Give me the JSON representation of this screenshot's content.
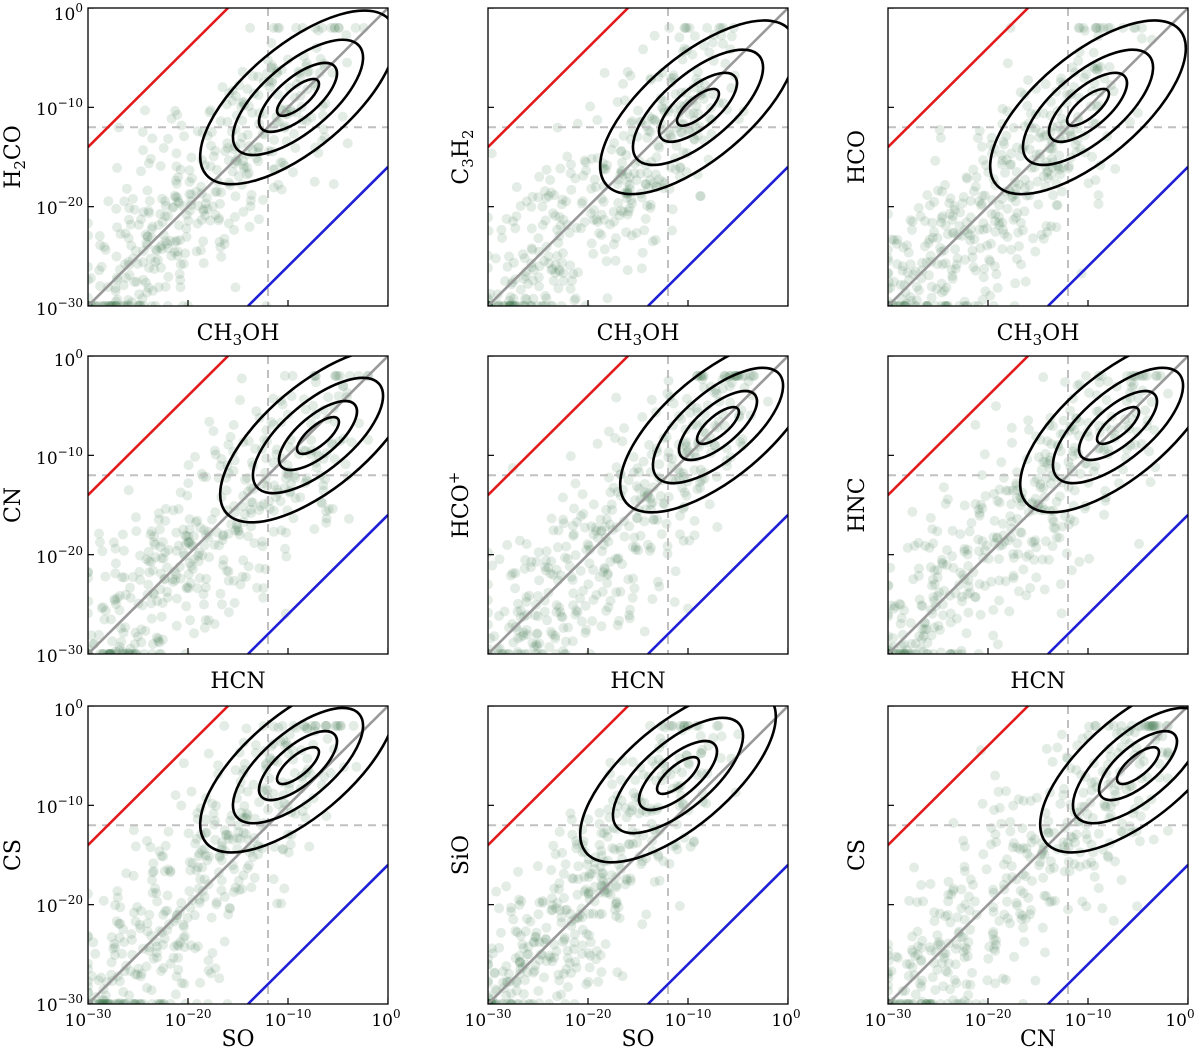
{
  "figure": {
    "layout": "3x3 grid of scatter plots with density contours",
    "colors": {
      "scatter": "#2e6b3a",
      "contour": "#000000",
      "upper_line": "#e31a1c",
      "unity_line": "#999999",
      "lower_line": "#1f1fd6",
      "threshold": "#c0c0c0"
    }
  },
  "chart_data": [
    {
      "type": "scatter",
      "xlabel": "CH3OH",
      "ylabel": "H2CO",
      "xscale": "log",
      "yscale": "log",
      "xlim": [
        1e-30,
        1
      ],
      "ylim": [
        1e-30,
        1
      ],
      "xticks": [
        "10^-30",
        "10^-20",
        "10^-10",
        "10^0"
      ],
      "yticks": [
        "10^-30",
        "10^-20",
        "10^-10",
        "10^0"
      ],
      "lines": {
        "unity": "y = x",
        "upper": "y = 1e16·x",
        "lower": "y = 1e-16·x",
        "threshold_x": 1e-12,
        "threshold_y": 1e-12
      },
      "density_peak": [
        1e-09,
        1e-09
      ]
    },
    {
      "type": "scatter",
      "xlabel": "CH3OH",
      "ylabel": "C3H2",
      "xscale": "log",
      "yscale": "log",
      "xlim": [
        1e-30,
        1
      ],
      "ylim": [
        1e-30,
        1
      ],
      "lines": {
        "unity": "y = x",
        "upper": "y = 1e16·x",
        "lower": "y = 1e-16·x",
        "threshold_x": 1e-12,
        "threshold_y": 1e-12
      },
      "density_peak": [
        1e-09,
        1e-10
      ]
    },
    {
      "type": "scatter",
      "xlabel": "CH3OH",
      "ylabel": "HCO",
      "xscale": "log",
      "yscale": "log",
      "xlim": [
        1e-30,
        1
      ],
      "ylim": [
        1e-30,
        1
      ],
      "lines": {
        "unity": "y = x",
        "upper": "y = 1e16·x",
        "lower": "y = 1e-16·x",
        "threshold_x": 1e-12,
        "threshold_y": 1e-12
      },
      "density_peak": [
        1e-10,
        1e-10
      ]
    },
    {
      "type": "scatter",
      "xlabel": "HCN",
      "ylabel": "CN",
      "xscale": "log",
      "yscale": "log",
      "xlim": [
        1e-30,
        1
      ],
      "ylim": [
        1e-30,
        1
      ],
      "lines": {
        "unity": "y = x",
        "upper": "y = 1e16·x",
        "lower": "y = 1e-16·x",
        "threshold_x": 1e-12,
        "threshold_y": 1e-12
      },
      "density_peak": [
        1e-07,
        1e-08
      ]
    },
    {
      "type": "scatter",
      "xlabel": "HCN",
      "ylabel": "HCO+",
      "xscale": "log",
      "yscale": "log",
      "xlim": [
        1e-30,
        1
      ],
      "ylim": [
        1e-30,
        1
      ],
      "lines": {
        "unity": "y = x",
        "upper": "y = 1e16·x",
        "lower": "y = 1e-16·x",
        "threshold_x": 1e-12,
        "threshold_y": 1e-12
      },
      "density_peak": [
        1e-07,
        1e-07
      ]
    },
    {
      "type": "scatter",
      "xlabel": "HCN",
      "ylabel": "HNC",
      "xscale": "log",
      "yscale": "log",
      "xlim": [
        1e-30,
        1
      ],
      "ylim": [
        1e-30,
        1
      ],
      "lines": {
        "unity": "y = x",
        "upper": "y = 1e16·x",
        "lower": "y = 1e-16·x",
        "threshold_x": 1e-12,
        "threshold_y": 1e-12
      },
      "density_peak": [
        1e-07,
        1e-07
      ]
    },
    {
      "type": "scatter",
      "xlabel": "SO",
      "ylabel": "CS",
      "xscale": "log",
      "yscale": "log",
      "xlim": [
        1e-30,
        1
      ],
      "ylim": [
        1e-30,
        1
      ],
      "xticks": [
        "10^-30",
        "10^-20",
        "10^-10",
        "10^0"
      ],
      "lines": {
        "unity": "y = x",
        "upper": "y = 1e16·x",
        "lower": "y = 1e-16·x",
        "threshold_x": 1e-12,
        "threshold_y": 1e-12
      },
      "density_peak": [
        1e-09,
        1e-06
      ]
    },
    {
      "type": "scatter",
      "xlabel": "SO",
      "ylabel": "SiO",
      "xscale": "log",
      "yscale": "log",
      "xlim": [
        1e-30,
        1
      ],
      "ylim": [
        1e-30,
        1
      ],
      "xticks": [
        "10^-30",
        "10^-20",
        "10^-10",
        "10^0"
      ],
      "lines": {
        "unity": "y = x",
        "upper": "y = 1e16·x",
        "lower": "y = 1e-16·x",
        "threshold_x": 1e-12,
        "threshold_y": 1e-12
      },
      "density_peak": [
        1e-11,
        1e-07
      ]
    },
    {
      "type": "scatter",
      "xlabel": "CN",
      "ylabel": "CS",
      "xscale": "log",
      "yscale": "log",
      "xlim": [
        1e-30,
        1
      ],
      "ylim": [
        1e-30,
        1
      ],
      "xticks": [
        "10^-30",
        "10^-20",
        "10^-10",
        "10^0"
      ],
      "lines": {
        "unity": "y = x",
        "upper": "y = 1e16·x",
        "lower": "y = 1e-16·x",
        "threshold_x": 1e-12,
        "threshold_y": 1e-12
      },
      "density_peak": [
        1e-05,
        1e-06
      ]
    }
  ],
  "labels": {
    "p0": {
      "x": {
        "base": "CH",
        "sub1": "3",
        "tail": "OH"
      },
      "y": {
        "base": "H",
        "sub1": "2",
        "tail": "CO"
      }
    },
    "p1": {
      "x": {
        "base": "CH",
        "sub1": "3",
        "tail": "OH"
      },
      "y": {
        "base": "C",
        "sub1": "3",
        "tail": "H",
        "sub2": "2"
      }
    },
    "p2": {
      "x": {
        "base": "CH",
        "sub1": "3",
        "tail": "OH"
      },
      "y": {
        "base": "HCO"
      }
    },
    "p3": {
      "x": {
        "base": "HCN"
      },
      "y": {
        "base": "CN"
      }
    },
    "p4": {
      "x": {
        "base": "HCN"
      },
      "y": {
        "base": "HCO",
        "sup": "+"
      }
    },
    "p5": {
      "x": {
        "base": "HCN"
      },
      "y": {
        "base": "HNC"
      }
    },
    "p6": {
      "x": {
        "base": "SO"
      },
      "y": {
        "base": "CS"
      }
    },
    "p7": {
      "x": {
        "base": "SO"
      },
      "y": {
        "base": "SiO"
      }
    },
    "p8": {
      "x": {
        "base": "CN"
      },
      "y": {
        "base": "CS"
      }
    }
  },
  "tick_labels": {
    "base": "10",
    "e0": "0",
    "em10": "−10",
    "em20": "−20",
    "em30": "−30"
  }
}
